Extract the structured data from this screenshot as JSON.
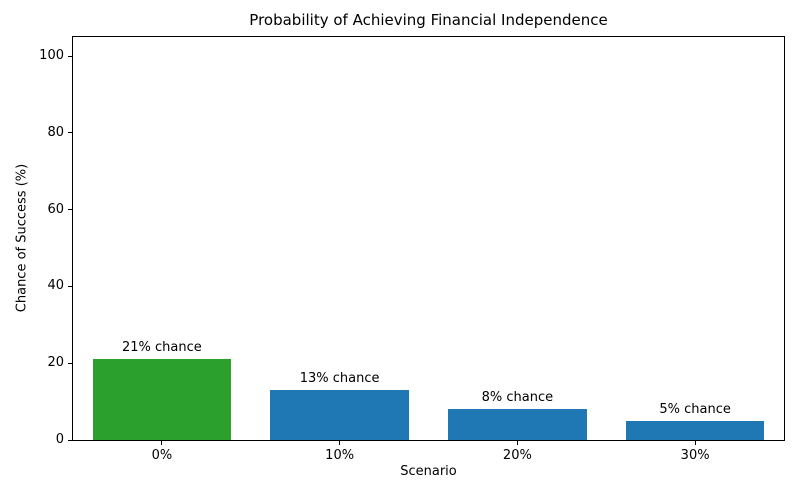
{
  "chart_data": {
    "type": "bar",
    "title": "Probability of Achieving Financial Independence",
    "xlabel": "Scenario",
    "ylabel": "Chance of Success (%)",
    "categories": [
      "0%",
      "10%",
      "20%",
      "30%"
    ],
    "values": [
      21,
      13,
      8,
      5
    ],
    "bar_labels": [
      "21% chance",
      "13% chance",
      "8% chance",
      "5% chance"
    ],
    "bar_colors": [
      "#2ca02c",
      "#1f77b4",
      "#1f77b4",
      "#1f77b4"
    ],
    "ylim": [
      0,
      105
    ],
    "yticks": [
      0,
      20,
      40,
      60,
      80,
      100
    ],
    "grid": false,
    "legend": "none",
    "spine_color": "#000000"
  }
}
